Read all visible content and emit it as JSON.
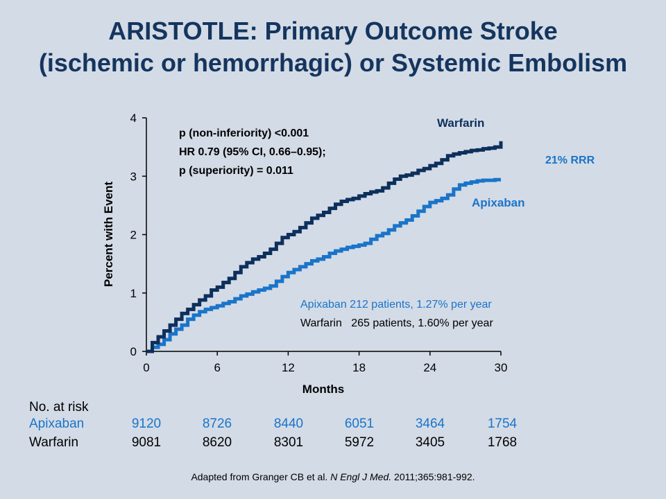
{
  "slide": {
    "title_line1": "ARISTOTLE: Primary Outcome Stroke",
    "title_line2": "(ischemic or hemorrhagic) or Systemic Embolism",
    "source_prefix": "Adapted from Granger CB et al.",
    "source_journal": "N Engl J Med.",
    "source_suffix": "2011;365:981-992."
  },
  "colors": {
    "warfarin": "#0d2f5c",
    "apixaban": "#1a74c9",
    "title": "#14355e",
    "background": "#d3dbe6"
  },
  "chart_data": {
    "type": "line",
    "xlabel": "Months",
    "ylabel": "Percent with Event",
    "xlim": [
      0,
      30
    ],
    "ylim": [
      0,
      4
    ],
    "xticks": [
      0,
      6,
      12,
      18,
      24,
      30
    ],
    "yticks": [
      0,
      1,
      2,
      3,
      4
    ],
    "grid": false,
    "series": [
      {
        "name": "Warfarin",
        "color": "#0d2f5c",
        "x": [
          0,
          0.5,
          1,
          1.5,
          2,
          2.5,
          3,
          3.5,
          4,
          4.5,
          5,
          5.5,
          6,
          6.5,
          7,
          7.5,
          8,
          8.5,
          9,
          9.5,
          10,
          10.5,
          11,
          11.5,
          12,
          12.5,
          13,
          13.5,
          14,
          14.5,
          15,
          15.5,
          16,
          16.5,
          17,
          17.5,
          18,
          18.5,
          19,
          19.5,
          20,
          20.5,
          21,
          21.5,
          22,
          22.5,
          23,
          23.5,
          24,
          24.5,
          25,
          25.5,
          26,
          26.5,
          27,
          27.5,
          28,
          28.5,
          29,
          29.5,
          30
        ],
        "values": [
          0,
          0.15,
          0.25,
          0.35,
          0.45,
          0.55,
          0.65,
          0.72,
          0.8,
          0.88,
          0.95,
          1.05,
          1.1,
          1.18,
          1.25,
          1.35,
          1.45,
          1.52,
          1.58,
          1.62,
          1.68,
          1.75,
          1.85,
          1.95,
          2.0,
          2.05,
          2.12,
          2.2,
          2.28,
          2.33,
          2.38,
          2.45,
          2.52,
          2.57,
          2.6,
          2.62,
          2.66,
          2.7,
          2.73,
          2.75,
          2.8,
          2.88,
          2.95,
          3.0,
          3.02,
          3.05,
          3.1,
          3.13,
          3.18,
          3.22,
          3.28,
          3.35,
          3.38,
          3.4,
          3.42,
          3.44,
          3.45,
          3.47,
          3.48,
          3.5,
          3.6
        ]
      },
      {
        "name": "Apixaban",
        "color": "#1a74c9",
        "x": [
          0,
          0.5,
          1,
          1.5,
          2,
          2.5,
          3,
          3.5,
          4,
          4.5,
          5,
          5.5,
          6,
          6.5,
          7,
          7.5,
          8,
          8.5,
          9,
          9.5,
          10,
          10.5,
          11,
          11.5,
          12,
          12.5,
          13,
          13.5,
          14,
          14.5,
          15,
          15.5,
          16,
          16.5,
          17,
          17.5,
          18,
          18.5,
          19,
          19.5,
          20,
          20.5,
          21,
          21.5,
          22,
          22.5,
          23,
          23.5,
          24,
          24.5,
          25,
          25.5,
          26,
          26.5,
          27,
          27.5,
          28,
          28.5,
          29,
          29.5,
          30
        ],
        "values": [
          0,
          0.07,
          0.12,
          0.2,
          0.3,
          0.38,
          0.45,
          0.55,
          0.62,
          0.68,
          0.72,
          0.75,
          0.78,
          0.82,
          0.85,
          0.9,
          0.95,
          0.98,
          1.02,
          1.05,
          1.08,
          1.12,
          1.2,
          1.28,
          1.35,
          1.4,
          1.45,
          1.5,
          1.55,
          1.58,
          1.62,
          1.68,
          1.72,
          1.75,
          1.78,
          1.8,
          1.82,
          1.85,
          1.92,
          1.98,
          2.02,
          2.08,
          2.15,
          2.2,
          2.25,
          2.32,
          2.4,
          2.48,
          2.55,
          2.58,
          2.62,
          2.68,
          2.78,
          2.85,
          2.88,
          2.9,
          2.92,
          2.93,
          2.93,
          2.94,
          2.94
        ]
      }
    ],
    "annotations": {
      "stats_line1": "p (non-inferiority) <0.001",
      "stats_line2": "HR 0.79 (95% CI, 0.66–0.95);",
      "stats_line3": "p (superiority) = 0.011",
      "warfarin_label": "Warfarin",
      "apixaban_label": "Apixaban",
      "rrr": "21% RRR",
      "apixaban_summary": "Apixaban 212 patients, 1.27% per year",
      "warfarin_summary": "Warfarin   265 patients, 1.60% per year"
    }
  },
  "risk_table": {
    "header": "No. at risk",
    "rows": [
      {
        "label": "Apixaban",
        "values": [
          "9120",
          "8726",
          "8440",
          "6051",
          "3464",
          "1754"
        ]
      },
      {
        "label": "Warfarin",
        "values": [
          "9081",
          "8620",
          "8301",
          "5972",
          "3405",
          "1768"
        ]
      }
    ]
  }
}
